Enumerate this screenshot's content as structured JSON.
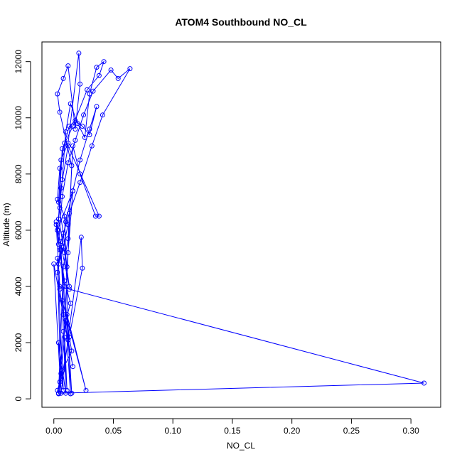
{
  "chart_data": {
    "type": "line",
    "title": "ATOM4 Southbound NO_CL",
    "xlabel": "NO_CL",
    "ylabel": "Altitude (m)",
    "xlim": [
      -0.01,
      0.325
    ],
    "ylim": [
      -300,
      12700
    ],
    "xticks": [
      "0.00",
      "0.05",
      "0.10",
      "0.15",
      "0.20",
      "0.25",
      "0.30"
    ],
    "yticks": [
      "0",
      "2000",
      "4000",
      "6000",
      "8000",
      "10000",
      "12000"
    ],
    "grid": false,
    "legend": "none",
    "color": "#0000ff",
    "series": [
      {
        "x": [
          0.004,
          0.006,
          0.009,
          0.012,
          0.015,
          0.005,
          0.003,
          0.008,
          0.012,
          0.018,
          0.022,
          0.021,
          0.012,
          0.006,
          0.004,
          0.008,
          0.011,
          0.016,
          0.003,
          0.005,
          0.007,
          0.01,
          0.014,
          0.02,
          0.026,
          0.03,
          0.036,
          0.042,
          0.038,
          0.028,
          0.016,
          0.007,
          0.004,
          0.009,
          0.013,
          0.002,
          0.004,
          0.007,
          0.012,
          0.018,
          0.025,
          0.033,
          0.048,
          0.054,
          0.064,
          0.041,
          0.032,
          0.022,
          0.013,
          0.006,
          0.004,
          0.008,
          0.012,
          0.003,
          0.005,
          0.009,
          0.013,
          0.018,
          0.024,
          0.03,
          0.036,
          0.03,
          0.022,
          0.016,
          0.01,
          0.006,
          0.003,
          0.005,
          0.008,
          0.012,
          0.016,
          0.0,
          0.006,
          0.003,
          0.008,
          0.004,
          0.01,
          0.007,
          0.027,
          0.011,
          0.015,
          0.009,
          0.002,
          0.005,
          0.013,
          0.311,
          0.004,
          0.008,
          0.012,
          0.016,
          0.022,
          0.035,
          0.038,
          0.012,
          0.006,
          0.003,
          0.005,
          0.009,
          0.014,
          0.01,
          0.013,
          0.015,
          0.007,
          0.005,
          0.003,
          0.006,
          0.023,
          0.024,
          0.004,
          0.008,
          0.011,
          0.006,
          0.014,
          0.009
        ],
        "y": [
          180,
          900,
          2200,
          5200,
          8300,
          10200,
          10850,
          11400,
          11850,
          9600,
          11200,
          12300,
          9100,
          8500,
          7000,
          5900,
          4700,
          7400,
          6000,
          6800,
          7800,
          9500,
          10500,
          9800,
          9300,
          10850,
          11800,
          12000,
          11500,
          11000,
          9700,
          8900,
          6400,
          5200,
          4000,
          6300,
          5500,
          7200,
          8400,
          9200,
          10100,
          10950,
          11700,
          11400,
          11750,
          10100,
          9000,
          7700,
          6600,
          5600,
          4800,
          5400,
          6200,
          7100,
          8200,
          9100,
          9700,
          9900,
          9700,
          9400,
          10400,
          9600,
          8500,
          7400,
          6300,
          5300,
          4500,
          3900,
          3000,
          2100,
          1150,
          4800,
          200,
          5000,
          300,
          2000,
          200,
          3500,
          300,
          3000,
          200,
          4000,
          6200,
          4000,
          3900,
          560,
          200,
          4700,
          5700,
          9000,
          8000,
          6500,
          6500,
          9000,
          7500,
          6000,
          5300,
          4200,
          3400,
          2800,
          2200,
          1700,
          1000,
          600,
          300,
          200,
          5750,
          4650,
          200,
          2400,
          300,
          5300,
          180,
          6500
        ]
      }
    ]
  }
}
